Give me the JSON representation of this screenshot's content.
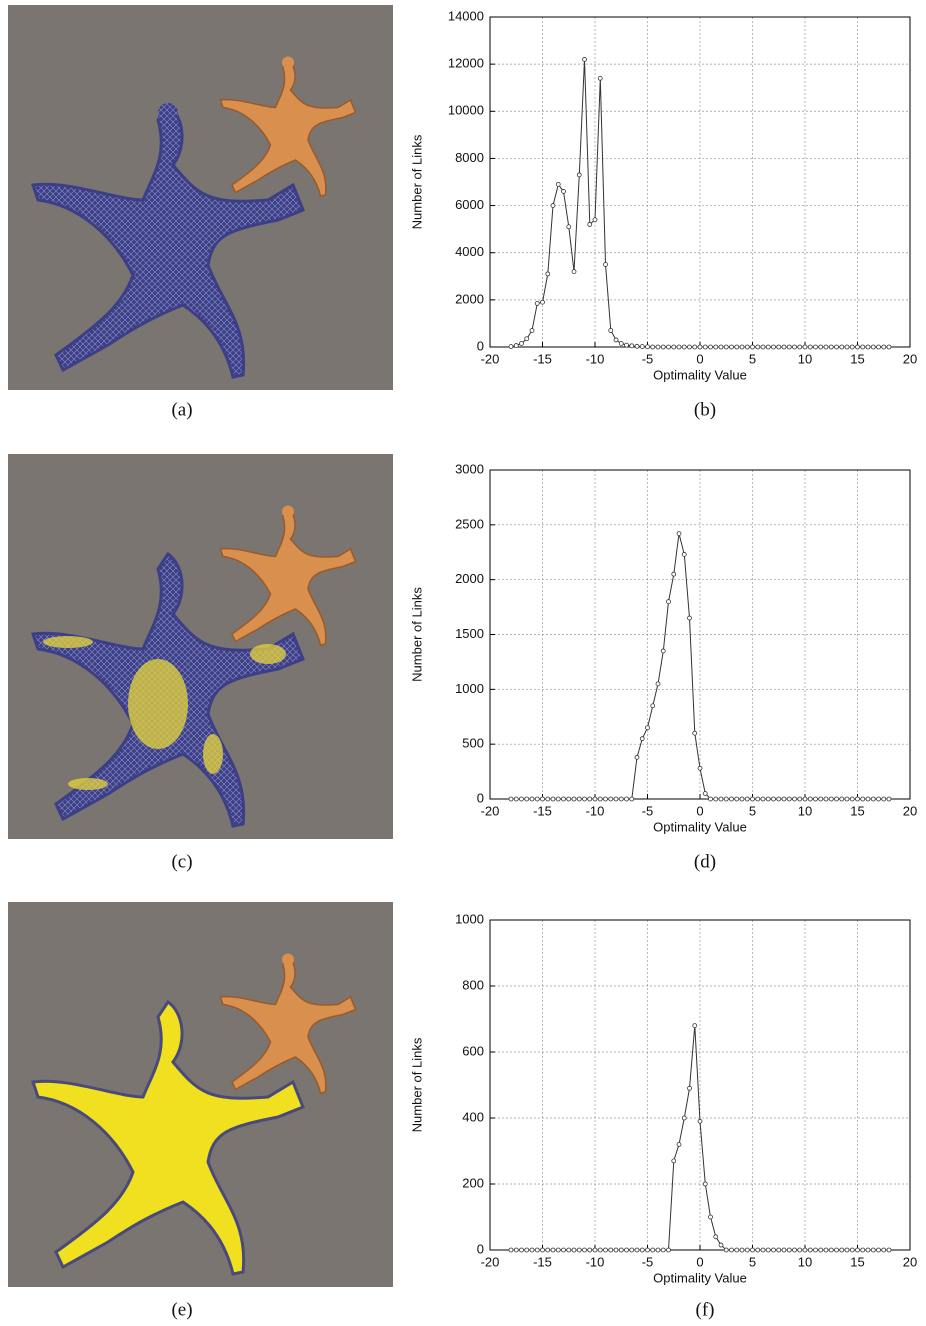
{
  "captions": [
    "(a)",
    "(b)",
    "(c)",
    "(d)",
    "(e)",
    "(f)"
  ],
  "chart_data": [
    {
      "type": "line",
      "x_label": "Optimality Value",
      "y_label": "Number of Links",
      "x": [
        -18,
        -17.5,
        -17,
        -16.5,
        -16,
        -15.5,
        -15,
        -14.5,
        -14,
        -13.5,
        -13,
        -12.5,
        -12,
        -11.5,
        -11,
        -10.5,
        -10,
        -9.5,
        -9,
        -8.5,
        -8,
        -7.5,
        -7,
        -6.5,
        -6,
        -5.5,
        -5,
        -4.5,
        -4,
        -3.5,
        -3,
        -2.5,
        -2,
        -1.5,
        -1,
        -0.5,
        0,
        0.5,
        1,
        1.5,
        2,
        2.5,
        3,
        3.5,
        4,
        4.5,
        5,
        5.5,
        6,
        6.5,
        7,
        7.5,
        8,
        8.5,
        9,
        9.5,
        10,
        10.5,
        11,
        11.5,
        12,
        12.5,
        13,
        13.5,
        14,
        14.5,
        15,
        15.5,
        16,
        16.5,
        17,
        17.5,
        18
      ],
      "values": [
        20,
        60,
        150,
        350,
        700,
        1850,
        1900,
        3100,
        6000,
        6900,
        6600,
        5100,
        3200,
        7300,
        12200,
        5200,
        5400,
        11400,
        3500,
        700,
        300,
        150,
        80,
        50,
        30,
        20,
        10,
        0,
        0,
        0,
        0,
        0,
        0,
        0,
        0,
        0,
        0,
        0,
        0,
        0,
        0,
        0,
        0,
        0,
        0,
        0,
        0,
        0,
        0,
        0,
        0,
        0,
        0,
        0,
        0,
        0,
        0,
        0,
        0,
        0,
        0,
        0,
        0,
        0,
        0,
        0,
        0,
        0,
        0,
        0,
        0,
        0,
        0
      ],
      "color": "#333333",
      "xlim": [
        -20,
        20
      ],
      "xticks": [
        -20,
        -15,
        -10,
        -5,
        0,
        5,
        10,
        15,
        20
      ],
      "ylim": [
        0,
        14000
      ],
      "yticks": [
        0,
        2000,
        4000,
        6000,
        8000,
        10000,
        12000,
        14000
      ],
      "grid": true
    },
    {
      "type": "line",
      "x_label": "Optimality Value",
      "y_label": "Number of Links",
      "x": [
        -18,
        -17.5,
        -17,
        -16.5,
        -16,
        -15.5,
        -15,
        -14.5,
        -14,
        -13.5,
        -13,
        -12.5,
        -12,
        -11.5,
        -11,
        -10.5,
        -10,
        -9.5,
        -9,
        -8.5,
        -8,
        -7.5,
        -7,
        -6.5,
        -6,
        -5.5,
        -5,
        -4.5,
        -4,
        -3.5,
        -3,
        -2.5,
        -2,
        -1.5,
        -1,
        -0.5,
        0,
        0.5,
        1,
        1.5,
        2,
        2.5,
        3,
        3.5,
        4,
        4.5,
        5,
        5.5,
        6,
        6.5,
        7,
        7.5,
        8,
        8.5,
        9,
        9.5,
        10,
        10.5,
        11,
        11.5,
        12,
        12.5,
        13,
        13.5,
        14,
        14.5,
        15,
        15.5,
        16,
        16.5,
        17,
        17.5,
        18
      ],
      "values": [
        0,
        0,
        0,
        0,
        0,
        0,
        0,
        0,
        0,
        0,
        0,
        0,
        0,
        0,
        0,
        0,
        0,
        0,
        0,
        0,
        0,
        0,
        0,
        0,
        380,
        550,
        650,
        850,
        1050,
        1350,
        1800,
        2050,
        2420,
        2230,
        1650,
        600,
        280,
        50,
        0,
        0,
        0,
        0,
        0,
        0,
        0,
        0,
        0,
        0,
        0,
        0,
        0,
        0,
        0,
        0,
        0,
        0,
        0,
        0,
        0,
        0,
        0,
        0,
        0,
        0,
        0,
        0,
        0,
        0,
        0,
        0,
        0,
        0,
        0
      ],
      "color": "#333333",
      "xlim": [
        -20,
        20
      ],
      "xticks": [
        -20,
        -15,
        -10,
        -5,
        0,
        5,
        10,
        15,
        20
      ],
      "ylim": [
        0,
        3000
      ],
      "yticks": [
        0,
        500,
        1000,
        1500,
        2000,
        2500,
        3000
      ],
      "grid": true
    },
    {
      "type": "line",
      "x_label": "Optimality Value",
      "y_label": "Number of Links",
      "x": [
        -18,
        -17.5,
        -17,
        -16.5,
        -16,
        -15.5,
        -15,
        -14.5,
        -14,
        -13.5,
        -13,
        -12.5,
        -12,
        -11.5,
        -11,
        -10.5,
        -10,
        -9.5,
        -9,
        -8.5,
        -8,
        -7.5,
        -7,
        -6.5,
        -6,
        -5.5,
        -5,
        -4.5,
        -4,
        -3.5,
        -3,
        -2.5,
        -2,
        -1.5,
        -1,
        -0.5,
        0,
        0.5,
        1,
        1.5,
        2,
        2.5,
        3,
        3.5,
        4,
        4.5,
        5,
        5.5,
        6,
        6.5,
        7,
        7.5,
        8,
        8.5,
        9,
        9.5,
        10,
        10.5,
        11,
        11.5,
        12,
        12.5,
        13,
        13.5,
        14,
        14.5,
        15,
        15.5,
        16,
        16.5,
        17,
        17.5,
        18
      ],
      "values": [
        0,
        0,
        0,
        0,
        0,
        0,
        0,
        0,
        0,
        0,
        0,
        0,
        0,
        0,
        0,
        0,
        0,
        0,
        0,
        0,
        0,
        0,
        0,
        0,
        0,
        0,
        0,
        0,
        0,
        0,
        0,
        270,
        320,
        400,
        490,
        680,
        390,
        200,
        100,
        40,
        15,
        0,
        0,
        0,
        0,
        0,
        0,
        0,
        0,
        0,
        0,
        0,
        0,
        0,
        0,
        0,
        0,
        0,
        0,
        0,
        0,
        0,
        0,
        0,
        0,
        0,
        0,
        0,
        0,
        0,
        0,
        0,
        0
      ],
      "color": "#333333",
      "xlim": [
        -20,
        20
      ],
      "xticks": [
        -20,
        -15,
        -10,
        -5,
        0,
        5,
        10,
        15,
        20
      ],
      "ylim": [
        0,
        1000
      ],
      "yticks": [
        0,
        200,
        400,
        600,
        800,
        1000
      ],
      "grid": true
    }
  ]
}
